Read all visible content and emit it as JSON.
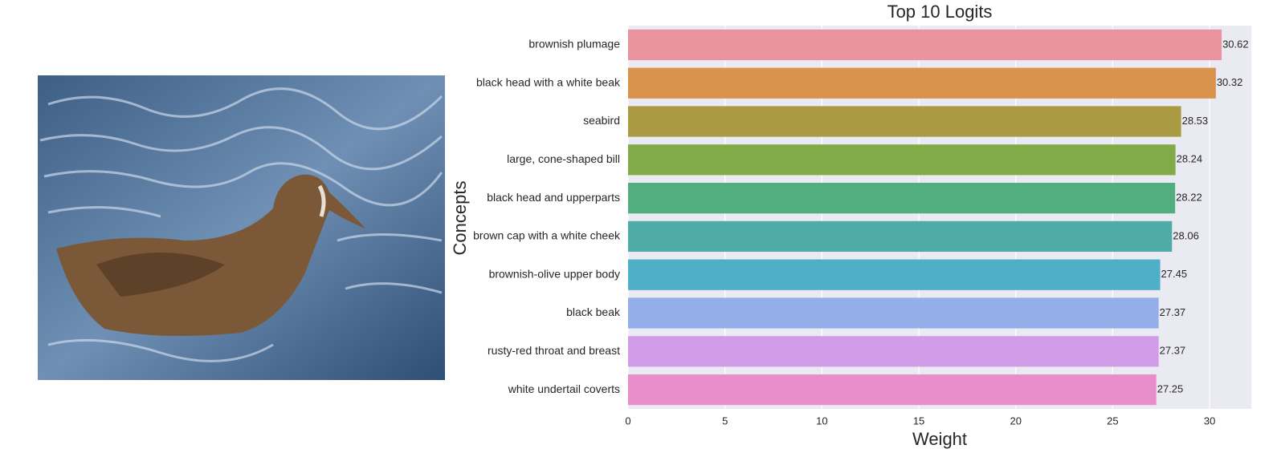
{
  "chart_data": {
    "type": "barh",
    "title": "Top 10 Logits",
    "xlabel": "Weight",
    "ylabel": "Concepts",
    "categories": [
      "brownish plumage",
      "black head with a white beak",
      "seabird",
      "large, cone-shaped bill",
      "black head and upperparts",
      "brown cap with a white cheek",
      "brownish-olive upper body",
      "black beak",
      "rusty-red throat and breast",
      "white undertail coverts"
    ],
    "values": [
      30.62,
      30.32,
      28.53,
      28.24,
      28.22,
      28.06,
      27.45,
      27.37,
      27.37,
      27.25
    ],
    "colors": [
      "#ea929e",
      "#d8924c",
      "#aa9b42",
      "#80ab48",
      "#52ae7e",
      "#4eaba6",
      "#4fafc8",
      "#93aee8",
      "#d29be8",
      "#e88fcb"
    ],
    "xlim": [
      0,
      32.15
    ],
    "xticks": [
      0,
      5,
      10,
      15,
      20,
      25,
      30
    ],
    "grid": true
  }
}
